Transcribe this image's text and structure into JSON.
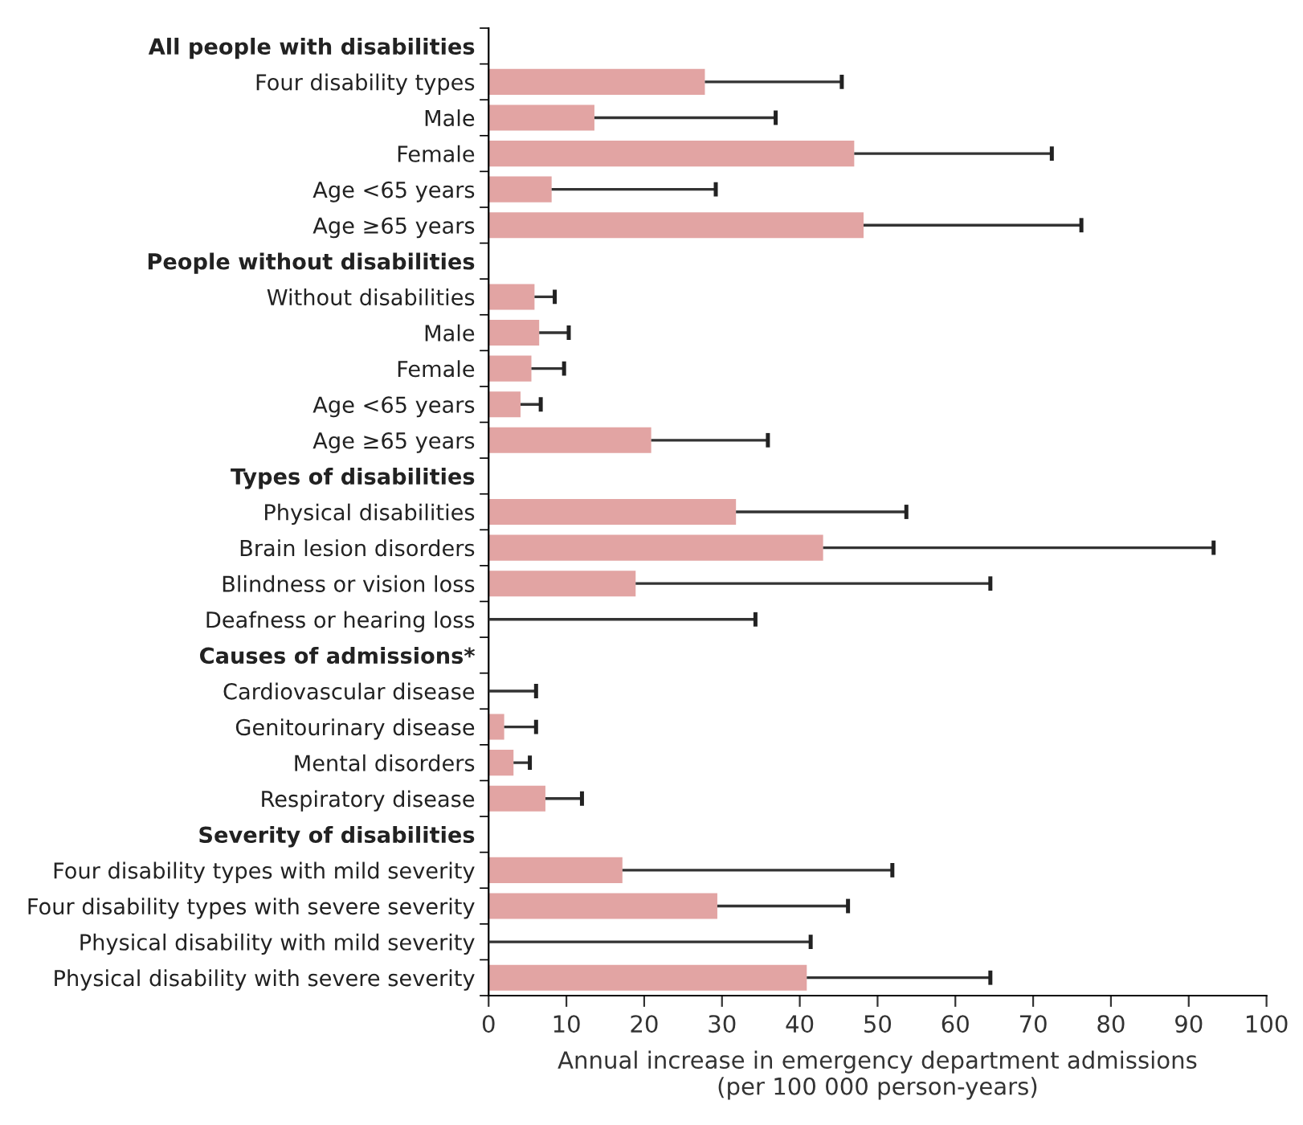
{
  "chart_data": {
    "type": "bar",
    "orientation": "horizontal",
    "xlabel": "Annual increase in emergency department admissions\n(per 100 000 person-years)",
    "categories": [
      "All people with disabilities",
      "Four disability types",
      "Male",
      "Female",
      "Age <65 years",
      "Age ≥65 years",
      "People without disabilities",
      "Without disabilities",
      "Male",
      "Female",
      "Age <65 years",
      "Age ≥65 years",
      "Types of disabilities",
      "Physical disabilities",
      "Brain lesion disorders",
      "Blindness or vision loss",
      "Deafness or hearing loss",
      "Causes of admissions*",
      "Cardiovascular disease",
      "Genitourinary disease",
      "Mental disorders",
      "Respiratory disease",
      "Severity of disabilities",
      "Four disability types with mild severity",
      "Four disability types with severe severity",
      "Physical disability with mild severity",
      "Physical disability with severe severity"
    ],
    "values": [
      null,
      27.8,
      13.6,
      47.0,
      8.1,
      48.2,
      null,
      5.9,
      6.5,
      5.5,
      4.1,
      20.9,
      null,
      31.8,
      43.0,
      18.9,
      0,
      null,
      0,
      2.0,
      3.2,
      7.3,
      null,
      17.2,
      29.4,
      0,
      40.9
    ],
    "errors": [
      null,
      [
        27.8,
        45.4
      ],
      [
        13.6,
        36.9
      ],
      [
        47.0,
        72.4
      ],
      [
        8.1,
        29.2
      ],
      [
        48.2,
        76.2
      ],
      null,
      [
        5.9,
        8.5
      ],
      [
        6.5,
        10.3
      ],
      [
        5.5,
        9.7
      ],
      [
        4.1,
        6.7
      ],
      [
        20.9,
        35.9
      ],
      null,
      [
        31.8,
        53.7
      ],
      [
        43.0,
        93.2
      ],
      [
        18.9,
        64.5
      ],
      [
        0,
        34.3
      ],
      null,
      [
        0,
        6.1
      ],
      [
        2.0,
        6.1
      ],
      [
        3.2,
        5.3
      ],
      [
        7.3,
        12.0
      ],
      null,
      [
        17.2,
        51.9
      ],
      [
        29.4,
        46.2
      ],
      [
        0,
        41.4
      ],
      [
        40.9,
        64.5
      ]
    ],
    "color": "#e2a4a3",
    "xlim": [
      0,
      100
    ],
    "xticks": [
      0,
      10,
      20,
      30,
      40,
      50,
      60,
      70,
      80,
      90,
      100
    ],
    "grid": false,
    "legend": false
  }
}
